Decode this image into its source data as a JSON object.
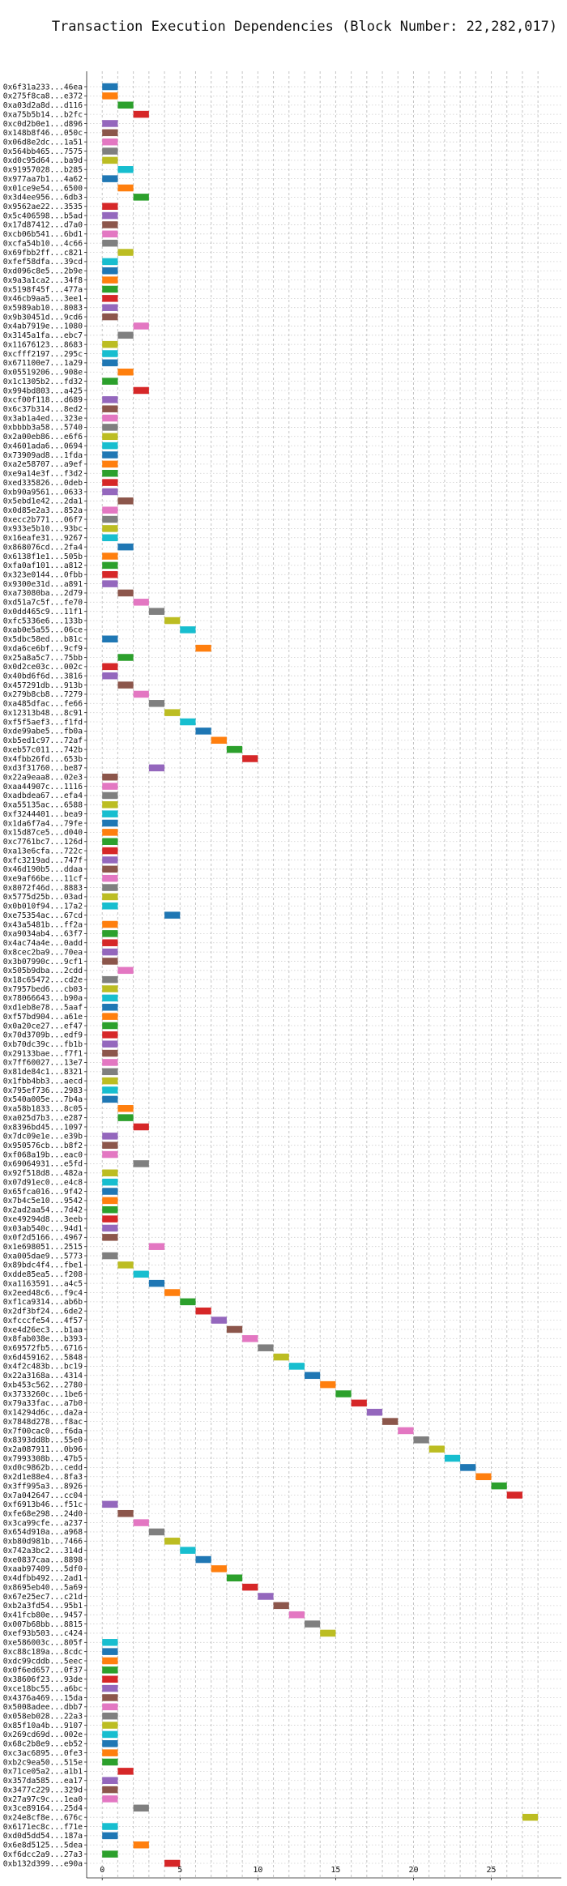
{
  "chart_data": {
    "type": "bar",
    "title": "Transaction Execution Dependencies (Block Number: 22,282,017)",
    "xlabel": "",
    "ylabel": "",
    "xlim": [
      -1.0,
      29.5
    ],
    "xticks": [
      0,
      5,
      10,
      15,
      20,
      25
    ],
    "grid": true,
    "bar_width": 1.0,
    "colors": [
      "#1f77b4",
      "#ff7f0e",
      "#2ca02c",
      "#d62728",
      "#9467bd",
      "#8c564b",
      "#e377c2",
      "#7f7f7f",
      "#bcbd22",
      "#17becf"
    ],
    "transactions": [
      {
        "label": "0x6f31a233...46ea",
        "start": 0,
        "color": 0
      },
      {
        "label": "0x275f8ca8...e372",
        "start": 0,
        "color": 1
      },
      {
        "label": "0xa03d2a8d...d116",
        "start": 1,
        "color": 2
      },
      {
        "label": "0xa75b5b14...b2fc",
        "start": 2,
        "color": 3
      },
      {
        "label": "0xc0d2b0e1...d896",
        "start": 0,
        "color": 4
      },
      {
        "label": "0x148b8f46...050c",
        "start": 0,
        "color": 5
      },
      {
        "label": "0x06d8e2dc...1a51",
        "start": 0,
        "color": 6
      },
      {
        "label": "0x564bb465...7575",
        "start": 0,
        "color": 7
      },
      {
        "label": "0xd0c95d64...ba9d",
        "start": 0,
        "color": 8
      },
      {
        "label": "0x91957028...b285",
        "start": 1,
        "color": 9
      },
      {
        "label": "0x977aa7b1...4a62",
        "start": 0,
        "color": 0
      },
      {
        "label": "0x01ce9e54...6500",
        "start": 1,
        "color": 1
      },
      {
        "label": "0x3d4ee956...6db3",
        "start": 2,
        "color": 2
      },
      {
        "label": "0x9562ae22...3535",
        "start": 0,
        "color": 3
      },
      {
        "label": "0x5c406598...b5ad",
        "start": 0,
        "color": 4
      },
      {
        "label": "0x17d87412...d7a0",
        "start": 0,
        "color": 5
      },
      {
        "label": "0xcb06b541...6bd1",
        "start": 0,
        "color": 6
      },
      {
        "label": "0xcfa54b10...4c66",
        "start": 0,
        "color": 7
      },
      {
        "label": "0x69fbb2ff...c821",
        "start": 1,
        "color": 8
      },
      {
        "label": "0xfef58dfa...39cd",
        "start": 0,
        "color": 9
      },
      {
        "label": "0xd096c8e5...2b9e",
        "start": 0,
        "color": 0
      },
      {
        "label": "0x9a3a1ca2...34f8",
        "start": 0,
        "color": 1
      },
      {
        "label": "0x5198f45f...477a",
        "start": 0,
        "color": 2
      },
      {
        "label": "0x46cb9aa5...3ee1",
        "start": 0,
        "color": 3
      },
      {
        "label": "0x5989ab10...8083",
        "start": 0,
        "color": 4
      },
      {
        "label": "0x9b30451d...9cd6",
        "start": 0,
        "color": 5
      },
      {
        "label": "0x4ab7919e...1080",
        "start": 2,
        "color": 6
      },
      {
        "label": "0x3145a1fa...ebc7",
        "start": 1,
        "color": 7
      },
      {
        "label": "0x11676123...8683",
        "start": 0,
        "color": 8
      },
      {
        "label": "0xcfff2197...295c",
        "start": 0,
        "color": 9
      },
      {
        "label": "0x671100e7...1a29",
        "start": 0,
        "color": 0
      },
      {
        "label": "0x05519206...908e",
        "start": 1,
        "color": 1
      },
      {
        "label": "0x1c1305b2...fd32",
        "start": 0,
        "color": 2
      },
      {
        "label": "0x994bd803...a425",
        "start": 2,
        "color": 3
      },
      {
        "label": "0xcf00f118...d689",
        "start": 0,
        "color": 4
      },
      {
        "label": "0x6c37b314...8ed2",
        "start": 0,
        "color": 5
      },
      {
        "label": "0x3ab1a4ed...323e",
        "start": 0,
        "color": 6
      },
      {
        "label": "0xbbbb3a58...5740",
        "start": 0,
        "color": 7
      },
      {
        "label": "0x2a00eb86...e6f6",
        "start": 0,
        "color": 8
      },
      {
        "label": "0x4601ada6...0694",
        "start": 0,
        "color": 9
      },
      {
        "label": "0x73909ad8...1fda",
        "start": 0,
        "color": 0
      },
      {
        "label": "0xa2e58707...a9ef",
        "start": 0,
        "color": 1
      },
      {
        "label": "0xe9a14e3f...f3d2",
        "start": 0,
        "color": 2
      },
      {
        "label": "0xed335826...0deb",
        "start": 0,
        "color": 3
      },
      {
        "label": "0xb90a9561...0633",
        "start": 0,
        "color": 4
      },
      {
        "label": "0x5ebd1e42...2da1",
        "start": 1,
        "color": 5
      },
      {
        "label": "0x0d85e2a3...852a",
        "start": 0,
        "color": 6
      },
      {
        "label": "0xecc2b771...06f7",
        "start": 0,
        "color": 7
      },
      {
        "label": "0x933e5b10...93bc",
        "start": 0,
        "color": 8
      },
      {
        "label": "0x16eafe31...9267",
        "start": 0,
        "color": 9
      },
      {
        "label": "0x868076cd...2fa4",
        "start": 1,
        "color": 0
      },
      {
        "label": "0x6138f1e1...505b",
        "start": 0,
        "color": 1
      },
      {
        "label": "0xfa0af101...a812",
        "start": 0,
        "color": 2
      },
      {
        "label": "0x323e0144...0fbb",
        "start": 0,
        "color": 3
      },
      {
        "label": "0x9300e31d...a891",
        "start": 0,
        "color": 4
      },
      {
        "label": "0xa73080ba...2d79",
        "start": 1,
        "color": 5
      },
      {
        "label": "0xd51a7c5f...fe70",
        "start": 2,
        "color": 6
      },
      {
        "label": "0x0dd465c9...11f1",
        "start": 3,
        "color": 7
      },
      {
        "label": "0xfc5336e6...133b",
        "start": 4,
        "color": 8
      },
      {
        "label": "0xab0e5a55...06ce",
        "start": 5,
        "color": 9
      },
      {
        "label": "0x5dbc58ed...b81c",
        "start": 0,
        "color": 0
      },
      {
        "label": "0xda6ce6bf...9cf9",
        "start": 6,
        "color": 1
      },
      {
        "label": "0x25a8a5c7...75bb",
        "start": 1,
        "color": 2
      },
      {
        "label": "0x0d2ce03c...002c",
        "start": 0,
        "color": 3
      },
      {
        "label": "0x40bd6f6d...3816",
        "start": 0,
        "color": 4
      },
      {
        "label": "0x457291db...913b",
        "start": 1,
        "color": 5
      },
      {
        "label": "0x279b8cb8...7279",
        "start": 2,
        "color": 6
      },
      {
        "label": "0xa485dfac...fe66",
        "start": 3,
        "color": 7
      },
      {
        "label": "0x12313b48...8c91",
        "start": 4,
        "color": 8
      },
      {
        "label": "0xf5f5aef3...f1fd",
        "start": 5,
        "color": 9
      },
      {
        "label": "0xde99abe5...fb0a",
        "start": 6,
        "color": 0
      },
      {
        "label": "0xb5ed1c97...72af",
        "start": 7,
        "color": 1
      },
      {
        "label": "0xeb57c011...742b",
        "start": 8,
        "color": 2
      },
      {
        "label": "0x4fbb26fd...653b",
        "start": 9,
        "color": 3
      },
      {
        "label": "0xd3f31760...be87",
        "start": 3,
        "color": 4
      },
      {
        "label": "0x22a9eaa8...02e3",
        "start": 0,
        "color": 5
      },
      {
        "label": "0xaa44907c...1116",
        "start": 0,
        "color": 6
      },
      {
        "label": "0xadbdea67...efa4",
        "start": 0,
        "color": 7
      },
      {
        "label": "0xa55135ac...6588",
        "start": 0,
        "color": 8
      },
      {
        "label": "0xf3244401...bea9",
        "start": 0,
        "color": 9
      },
      {
        "label": "0x1da6f7a4...79fe",
        "start": 0,
        "color": 0
      },
      {
        "label": "0x15d87ce5...d040",
        "start": 0,
        "color": 1
      },
      {
        "label": "0xc7761bc7...126d",
        "start": 0,
        "color": 2
      },
      {
        "label": "0xa13e6cfa...722c",
        "start": 0,
        "color": 3
      },
      {
        "label": "0xfc3219ad...747f",
        "start": 0,
        "color": 4
      },
      {
        "label": "0x46d190b5...ddaa",
        "start": 0,
        "color": 5
      },
      {
        "label": "0xe9af66be...11cf",
        "start": 0,
        "color": 6
      },
      {
        "label": "0x8072f46d...8883",
        "start": 0,
        "color": 7
      },
      {
        "label": "0x5775d25b...03ad",
        "start": 0,
        "color": 8
      },
      {
        "label": "0x0b010f94...17a2",
        "start": 0,
        "color": 9
      },
      {
        "label": "0xe75354ac...67cd",
        "start": 4,
        "color": 0
      },
      {
        "label": "0x43a5481b...ff2a",
        "start": 0,
        "color": 1
      },
      {
        "label": "0xa9034ab4...63f7",
        "start": 0,
        "color": 2
      },
      {
        "label": "0x4ac74a4e...0add",
        "start": 0,
        "color": 3
      },
      {
        "label": "0x8cec2ba9...70ea",
        "start": 0,
        "color": 4
      },
      {
        "label": "0x3b07990c...9cf1",
        "start": 0,
        "color": 5
      },
      {
        "label": "0x505b9dba...2cdd",
        "start": 1,
        "color": 6
      },
      {
        "label": "0x18c65472...cd2e",
        "start": 0,
        "color": 7
      },
      {
        "label": "0x7957bed6...cb03",
        "start": 0,
        "color": 8
      },
      {
        "label": "0x78066643...b90a",
        "start": 0,
        "color": 9
      },
      {
        "label": "0xd1eb8e78...5aaf",
        "start": 0,
        "color": 0
      },
      {
        "label": "0xf57bd904...a61e",
        "start": 0,
        "color": 1
      },
      {
        "label": "0x0a20ce27...ef47",
        "start": 0,
        "color": 2
      },
      {
        "label": "0x70d3709b...edf9",
        "start": 0,
        "color": 3
      },
      {
        "label": "0xb70dc39c...fb1b",
        "start": 0,
        "color": 4
      },
      {
        "label": "0x29133bae...f7f1",
        "start": 0,
        "color": 5
      },
      {
        "label": "0x7ff60027...13e7",
        "start": 0,
        "color": 6
      },
      {
        "label": "0x81de84c1...8321",
        "start": 0,
        "color": 7
      },
      {
        "label": "0x1fbb4bb3...aecd",
        "start": 0,
        "color": 8
      },
      {
        "label": "0x795ef736...2983",
        "start": 0,
        "color": 9
      },
      {
        "label": "0x540a005e...7b4a",
        "start": 0,
        "color": 0
      },
      {
        "label": "0xa58b1833...8c05",
        "start": 1,
        "color": 1
      },
      {
        "label": "0xa025d7b3...e287",
        "start": 1,
        "color": 2
      },
      {
        "label": "0x8396bd45...1097",
        "start": 2,
        "color": 3
      },
      {
        "label": "0x7dc09e1e...e39b",
        "start": 0,
        "color": 4
      },
      {
        "label": "0x950576cb...b8f2",
        "start": 0,
        "color": 5
      },
      {
        "label": "0xf068a19b...eac0",
        "start": 0,
        "color": 6
      },
      {
        "label": "0x69064931...e5fd",
        "start": 2,
        "color": 7
      },
      {
        "label": "0x92f518d8...482a",
        "start": 0,
        "color": 8
      },
      {
        "label": "0x07d91ec0...e4c8",
        "start": 0,
        "color": 9
      },
      {
        "label": "0x65fca016...9f42",
        "start": 0,
        "color": 0
      },
      {
        "label": "0x7b4c5e10...9542",
        "start": 0,
        "color": 1
      },
      {
        "label": "0x2ad2aa54...7d42",
        "start": 0,
        "color": 2
      },
      {
        "label": "0xe49294d8...3eeb",
        "start": 0,
        "color": 3
      },
      {
        "label": "0x03ab540c...94d1",
        "start": 0,
        "color": 4
      },
      {
        "label": "0x0f2d5166...4967",
        "start": 0,
        "color": 5
      },
      {
        "label": "0x1e698051...2515",
        "start": 3,
        "color": 6
      },
      {
        "label": "0xa005dae9...5773",
        "start": 0,
        "color": 7
      },
      {
        "label": "0x89bdc4f4...fbe1",
        "start": 1,
        "color": 8
      },
      {
        "label": "0xdde85ea5...f208",
        "start": 2,
        "color": 9
      },
      {
        "label": "0xa1163591...a4c5",
        "start": 3,
        "color": 0
      },
      {
        "label": "0x2eed48c6...f9c4",
        "start": 4,
        "color": 1
      },
      {
        "label": "0xf1ca9314...ab6b",
        "start": 5,
        "color": 2
      },
      {
        "label": "0x2df3bf24...6de2",
        "start": 6,
        "color": 3
      },
      {
        "label": "0xfcccfe54...4f57",
        "start": 7,
        "color": 4
      },
      {
        "label": "0xe4d26ec3...b1aa",
        "start": 8,
        "color": 5
      },
      {
        "label": "0x8fab038e...b393",
        "start": 9,
        "color": 6
      },
      {
        "label": "0x69572fb5...6716",
        "start": 10,
        "color": 7
      },
      {
        "label": "0x6d459162...5848",
        "start": 11,
        "color": 8
      },
      {
        "label": "0x4f2c483b...bc19",
        "start": 12,
        "color": 9
      },
      {
        "label": "0x22a3168a...4314",
        "start": 13,
        "color": 0
      },
      {
        "label": "0xb453c562...2780",
        "start": 14,
        "color": 1
      },
      {
        "label": "0x3733260c...1be6",
        "start": 15,
        "color": 2
      },
      {
        "label": "0x79a33fac...a7b0",
        "start": 16,
        "color": 3
      },
      {
        "label": "0x14294d6c...da2a",
        "start": 17,
        "color": 4
      },
      {
        "label": "0x7848d278...f8ac",
        "start": 18,
        "color": 5
      },
      {
        "label": "0x7f00cac0...f6da",
        "start": 19,
        "color": 6
      },
      {
        "label": "0x8393dd8b...55e0",
        "start": 20,
        "color": 7
      },
      {
        "label": "0x2a087911...0b96",
        "start": 21,
        "color": 8
      },
      {
        "label": "0x7993308b...47b5",
        "start": 22,
        "color": 9
      },
      {
        "label": "0xd0c9862b...cedd",
        "start": 23,
        "color": 0
      },
      {
        "label": "0x2d1e88e4...8fa3",
        "start": 24,
        "color": 1
      },
      {
        "label": "0x3ff995a3...8926",
        "start": 25,
        "color": 2
      },
      {
        "label": "0x7a042647...cc04",
        "start": 26,
        "color": 3
      },
      {
        "label": "0xf6913b46...f51c",
        "start": 0,
        "color": 4
      },
      {
        "label": "0xfe68e298...24d0",
        "start": 1,
        "color": 5
      },
      {
        "label": "0x3ca99cfe...a237",
        "start": 2,
        "color": 6
      },
      {
        "label": "0x654d910a...a968",
        "start": 3,
        "color": 7
      },
      {
        "label": "0xb80d981b...7466",
        "start": 4,
        "color": 8
      },
      {
        "label": "0x742a3bc2...314d",
        "start": 5,
        "color": 9
      },
      {
        "label": "0xe0837caa...8898",
        "start": 6,
        "color": 0
      },
      {
        "label": "0xaab97409...5df0",
        "start": 7,
        "color": 1
      },
      {
        "label": "0x4dfbb492...2ad1",
        "start": 8,
        "color": 2
      },
      {
        "label": "0x8695eb40...5a69",
        "start": 9,
        "color": 3
      },
      {
        "label": "0x67e25ec7...c21d",
        "start": 10,
        "color": 4
      },
      {
        "label": "0xb2a3fd54...95b1",
        "start": 11,
        "color": 5
      },
      {
        "label": "0x41fcb80e...9457",
        "start": 12,
        "color": 6
      },
      {
        "label": "0x007b68bb...8815",
        "start": 13,
        "color": 7
      },
      {
        "label": "0xef93b503...c424",
        "start": 14,
        "color": 8
      },
      {
        "label": "0xe586003c...805f",
        "start": 0,
        "color": 9
      },
      {
        "label": "0xc88c189a...8cdc",
        "start": 0,
        "color": 0
      },
      {
        "label": "0xdc99cddb...5eec",
        "start": 0,
        "color": 1
      },
      {
        "label": "0x0f6ed657...0f37",
        "start": 0,
        "color": 2
      },
      {
        "label": "0x38606f23...93de",
        "start": 0,
        "color": 3
      },
      {
        "label": "0xce18bc55...a6bc",
        "start": 0,
        "color": 4
      },
      {
        "label": "0x4376a469...15da",
        "start": 0,
        "color": 5
      },
      {
        "label": "0x5008adee...dbb7",
        "start": 0,
        "color": 6
      },
      {
        "label": "0x058eb028...22a3",
        "start": 0,
        "color": 7
      },
      {
        "label": "0x85f10a4b...9107",
        "start": 0,
        "color": 8
      },
      {
        "label": "0x269cd69d...002e",
        "start": 0,
        "color": 9
      },
      {
        "label": "0x68c2b8e9...eb52",
        "start": 0,
        "color": 0
      },
      {
        "label": "0xc3ac6895...0fe3",
        "start": 0,
        "color": 1
      },
      {
        "label": "0xb2c9ea50...515e",
        "start": 0,
        "color": 2
      },
      {
        "label": "0x71ce05a2...a1b1",
        "start": 1,
        "color": 3
      },
      {
        "label": "0x357da585...ea17",
        "start": 0,
        "color": 4
      },
      {
        "label": "0x3477c229...329d",
        "start": 0,
        "color": 5
      },
      {
        "label": "0x27a97c9c...1ea0",
        "start": 0,
        "color": 6
      },
      {
        "label": "0x3ce89164...25d4",
        "start": 2,
        "color": 7
      },
      {
        "label": "0x24e8cf8e...676c",
        "start": 27,
        "color": 8
      },
      {
        "label": "0x6171ec8c...f71e",
        "start": 0,
        "color": 9
      },
      {
        "label": "0xd0d5dd54...187a",
        "start": 0,
        "color": 0
      },
      {
        "label": "0x6e8d5125...5dea",
        "start": 2,
        "color": 1
      },
      {
        "label": "0xf6dcc2a9...27a3",
        "start": 0,
        "color": 2
      },
      {
        "label": "0xb132d399...e90a",
        "start": 4,
        "color": 3
      }
    ]
  }
}
